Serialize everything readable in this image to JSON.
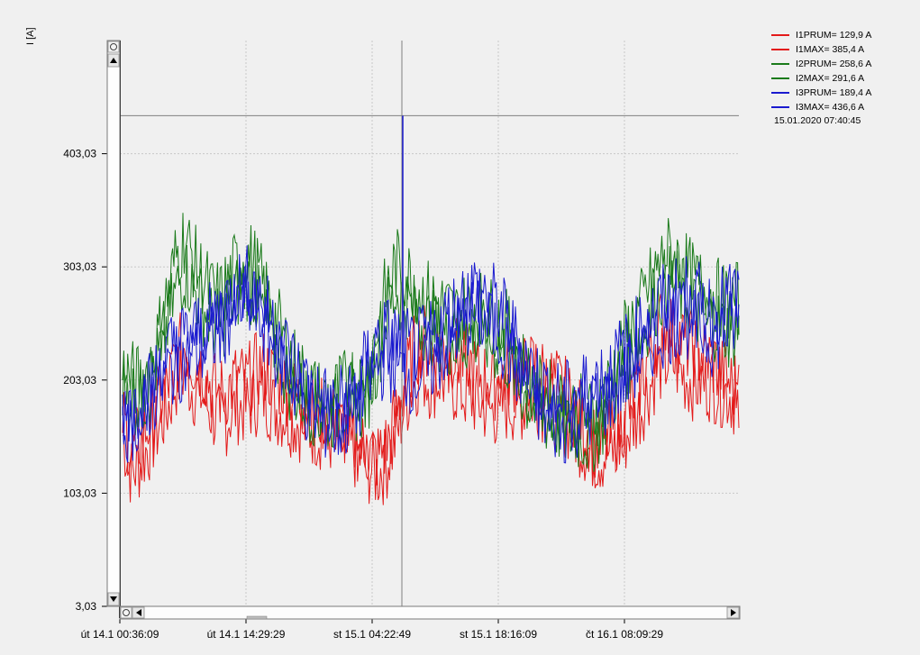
{
  "chart_data": {
    "type": "line",
    "ylabel": "I [A]",
    "y_ticks": [
      "403,03",
      "303,03",
      "203,03",
      "103,03",
      "3,03"
    ],
    "y_tick_values": [
      403.03,
      303.03,
      203.03,
      103.03,
      3.03
    ],
    "ylim": [
      3.03,
      503.03
    ],
    "x_ticks": [
      "út 14.1 00:36:09",
      "út 14.1 14:29:29",
      "st 15.1 04:22:49",
      "st 15.1 18:16:09",
      "čt 16.1 08:09:29"
    ],
    "grid": true,
    "legend_position": "top-right",
    "cursor": {
      "timestamp": "15.01.2020 07:40:45",
      "value": 436.6
    },
    "series": [
      {
        "name": "I1PRUM",
        "label": "I1PRUM= 129,9 A",
        "color": "#e31a1a",
        "values": [
          155,
          120,
          130,
          145,
          160,
          175,
          200,
          210,
          195,
          190,
          175,
          165,
          170,
          180,
          178,
          185,
          190,
          180,
          175,
          170,
          165,
          160,
          158,
          155,
          150,
          145,
          140,
          135,
          125,
          120,
          130,
          150,
          180,
          200,
          210,
          200,
          205,
          200,
          195,
          190,
          185,
          180,
          175,
          178,
          182,
          180,
          185,
          188,
          180,
          175,
          170,
          160,
          150,
          140,
          135,
          138,
          142,
          150,
          165,
          180,
          200,
          215,
          220,
          215,
          205,
          200,
          200,
          200,
          195,
          190,
          185
        ]
      },
      {
        "name": "I1MAX",
        "label": "I1MAX= 385,4 A",
        "color": "#e31a1a",
        "values": [
          170,
          140,
          150,
          165,
          180,
          195,
          220,
          235,
          220,
          215,
          200,
          190,
          195,
          205,
          200,
          210,
          215,
          205,
          200,
          195,
          185,
          180,
          175,
          170,
          165,
          160,
          150,
          145,
          140,
          135,
          145,
          170,
          200,
          225,
          240,
          230,
          235,
          230,
          225,
          220,
          210,
          205,
          200,
          205,
          210,
          205,
          210,
          215,
          205,
          200,
          195,
          180,
          170,
          155,
          145,
          150,
          155,
          170,
          185,
          205,
          230,
          250,
          255,
          245,
          235,
          230,
          225,
          220,
          210,
          200,
          195
        ]
      },
      {
        "name": "I2PRUM",
        "label": "I2PRUM= 258,6 A",
        "color": "#1a7a1a",
        "values": [
          195,
          190,
          185,
          195,
          220,
          250,
          280,
          300,
          285,
          270,
          255,
          250,
          265,
          280,
          290,
          280,
          260,
          240,
          220,
          200,
          190,
          185,
          175,
          170,
          175,
          180,
          185,
          180,
          195,
          225,
          260,
          280,
          275,
          265,
          255,
          250,
          245,
          240,
          235,
          240,
          245,
          240,
          235,
          230,
          220,
          200,
          185,
          175,
          170,
          165,
          160,
          155,
          155,
          150,
          160,
          175,
          195,
          215,
          230,
          245,
          265,
          280,
          290,
          285,
          275,
          265,
          260,
          255,
          250,
          245,
          250
        ]
      },
      {
        "name": "I2MAX",
        "label": "I2MAX= 291,6 A",
        "color": "#1a7a1a",
        "values": [
          210,
          205,
          200,
          215,
          240,
          275,
          310,
          330,
          310,
          295,
          280,
          275,
          290,
          305,
          315,
          305,
          285,
          265,
          245,
          225,
          210,
          200,
          190,
          185,
          190,
          195,
          205,
          200,
          215,
          250,
          285,
          305,
          300,
          290,
          280,
          275,
          270,
          265,
          260,
          265,
          270,
          265,
          260,
          255,
          245,
          225,
          205,
          195,
          190,
          185,
          180,
          175,
          175,
          170,
          180,
          195,
          215,
          240,
          255,
          270,
          290,
          305,
          315,
          310,
          300,
          290,
          285,
          280,
          275,
          270,
          275
        ]
      },
      {
        "name": "I3PRUM",
        "label": "I3PRUM= 189,4 A",
        "color": "#1a1acf",
        "values": [
          160,
          165,
          170,
          180,
          195,
          210,
          215,
          220,
          225,
          230,
          235,
          245,
          255,
          265,
          270,
          265,
          250,
          235,
          220,
          205,
          190,
          180,
          170,
          165,
          160,
          165,
          170,
          185,
          200,
          215,
          220,
          215,
          210,
          205,
          210,
          215,
          225,
          235,
          245,
          255,
          260,
          255,
          250,
          240,
          225,
          210,
          195,
          180,
          170,
          165,
          160,
          165,
          170,
          175,
          180,
          185,
          195,
          205,
          215,
          225,
          235,
          245,
          250,
          255,
          255,
          250,
          245,
          240,
          245,
          250,
          255
        ]
      },
      {
        "name": "I3MAX",
        "label": "I3MAX= 436,6 A",
        "color": "#1a1acf",
        "values": [
          175,
          180,
          185,
          195,
          210,
          225,
          235,
          240,
          245,
          250,
          255,
          265,
          275,
          285,
          290,
          285,
          270,
          255,
          240,
          225,
          210,
          200,
          190,
          185,
          180,
          185,
          190,
          205,
          225,
          240,
          245,
          240,
          235,
          230,
          235,
          240,
          250,
          260,
          270,
          280,
          285,
          280,
          275,
          265,
          250,
          235,
          220,
          205,
          195,
          190,
          185,
          190,
          195,
          200,
          205,
          210,
          220,
          230,
          240,
          250,
          260,
          270,
          275,
          280,
          280,
          275,
          270,
          265,
          270,
          275,
          280
        ]
      }
    ]
  }
}
